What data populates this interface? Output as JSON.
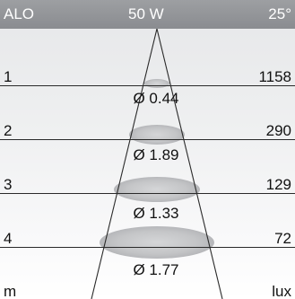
{
  "header": {
    "model": "ALO",
    "power": "50 W",
    "angle": "25°"
  },
  "rows": [
    {
      "distance": "1",
      "lux": "1158",
      "diameter": "Ø 0.44"
    },
    {
      "distance": "2",
      "lux": "290",
      "diameter": "Ø 1.89"
    },
    {
      "distance": "3",
      "lux": "129",
      "diameter": "Ø 1.33"
    },
    {
      "distance": "4",
      "lux": "72",
      "diameter": "Ø 1.77"
    }
  ],
  "footer": {
    "unit_left": "m",
    "unit_right": "lux"
  },
  "colors": {
    "header_bg": "#8f9195",
    "line": "#2a2a2a",
    "ellipse": "#c9cacc"
  }
}
